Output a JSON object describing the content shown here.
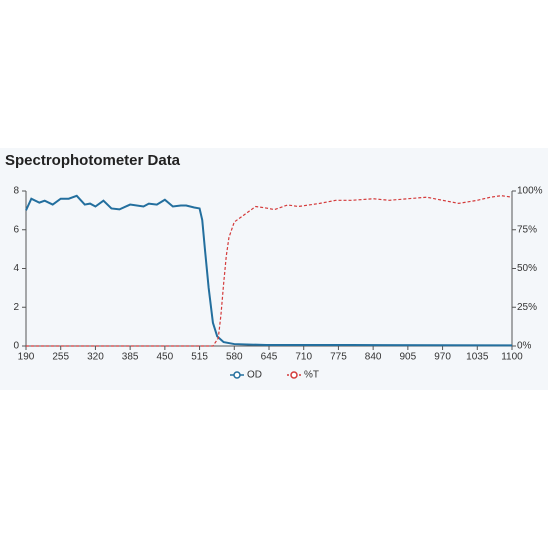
{
  "chart_data": {
    "type": "line",
    "title": "Spectrophotometer Data",
    "xlim": [
      190,
      1100
    ],
    "xticks": [
      190,
      255,
      320,
      385,
      450,
      515,
      580,
      645,
      710,
      775,
      840,
      905,
      970,
      1035,
      1100
    ],
    "ylim": [
      0,
      8
    ],
    "yticks": [
      0,
      2,
      4,
      6,
      8
    ],
    "y2lim": [
      0,
      100
    ],
    "y2ticks": [
      {
        "value": 0,
        "label": "0%"
      },
      {
        "value": 25,
        "label": "25%"
      },
      {
        "value": 50,
        "label": "50%"
      },
      {
        "value": 75,
        "label": "75%"
      },
      {
        "value": 100,
        "label": "100%"
      }
    ],
    "grid": false,
    "legend": "bottom",
    "series": [
      {
        "name": "OD",
        "color": "#236f9e",
        "dashed": false,
        "x": [
          190,
          200,
          215,
          225,
          240,
          255,
          270,
          285,
          300,
          310,
          320,
          335,
          350,
          365,
          385,
          410,
          420,
          435,
          450,
          465,
          480,
          490,
          505,
          515,
          520,
          525,
          532,
          540,
          548,
          560,
          580,
          640,
          800,
          1100
        ],
        "values": [
          7.0,
          7.6,
          7.4,
          7.5,
          7.3,
          7.6,
          7.6,
          7.75,
          7.3,
          7.35,
          7.2,
          7.5,
          7.1,
          7.05,
          7.3,
          7.2,
          7.35,
          7.3,
          7.55,
          7.2,
          7.25,
          7.25,
          7.15,
          7.1,
          6.5,
          5.0,
          3.0,
          1.2,
          0.5,
          0.2,
          0.1,
          0.05,
          0.05,
          0.03
        ]
      },
      {
        "name": "%T",
        "color": "#d43a3a",
        "dashed": true,
        "axis": "y2",
        "x": [
          190,
          540,
          550,
          555,
          560,
          565,
          570,
          580,
          600,
          620,
          640,
          655,
          680,
          700,
          720,
          740,
          770,
          800,
          840,
          870,
          905,
          940,
          970,
          1000,
          1035,
          1060,
          1080,
          1100
        ],
        "values": [
          0,
          0,
          5,
          20,
          40,
          58,
          70,
          80,
          85,
          90,
          89,
          88,
          91,
          90,
          91,
          92,
          94,
          94,
          95,
          94,
          95,
          96,
          94,
          92,
          94,
          96,
          97,
          96
        ]
      }
    ]
  }
}
